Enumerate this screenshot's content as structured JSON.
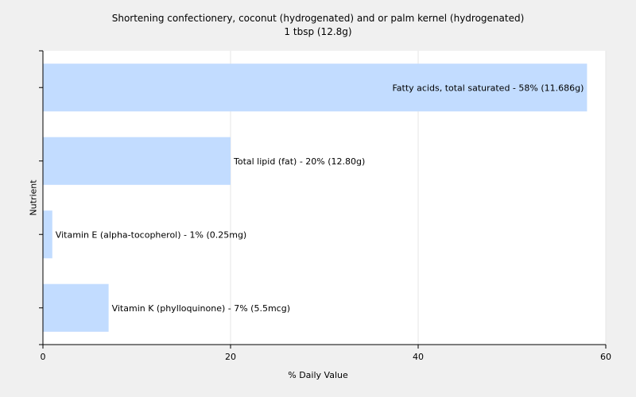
{
  "chart_data": {
    "type": "bar",
    "orientation": "horizontal",
    "title": "Shortening confectionery, coconut (hydrogenated) and or palm kernel (hydrogenated)",
    "subtitle": "1 tbsp (12.8g)",
    "xlabel": "% Daily Value",
    "ylabel": "Nutrient",
    "xlim": [
      0,
      60
    ],
    "xticks": [
      0,
      20,
      40,
      60
    ],
    "grid": true,
    "bar_color": "#c2dcff",
    "categories": [
      "Fatty acids, total saturated - 58% (11.686g)",
      "Total lipid (fat) - 20% (12.80g)",
      "Vitamin E (alpha-tocopherol) - 1% (0.25mg)",
      "Vitamin K (phylloquinone) - 7% (5.5mcg)"
    ],
    "values": [
      58,
      20,
      1,
      7
    ]
  }
}
